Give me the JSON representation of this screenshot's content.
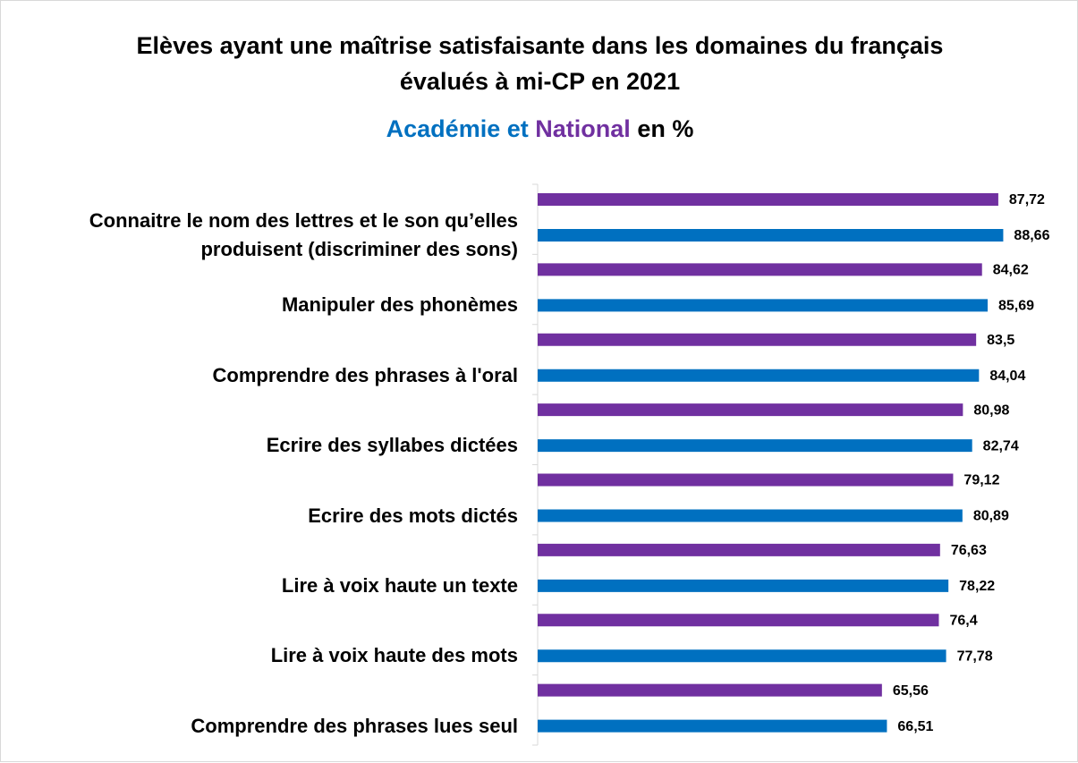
{
  "chart_data": {
    "type": "barh",
    "title": "Elèves ayant une maîtrise satisfaisante dans les domaines du français évalués à mi-CP en 2021",
    "legend_joiner": "et",
    "unit_label": "en %",
    "categories": [
      "Connaitre le nom des lettres et le son qu’elles produisent (discriminer des sons)",
      "Manipuler des phonèmes",
      "Comprendre des phrases à l'oral",
      "Ecrire des syllabes dictées",
      "Ecrire des mots dictés",
      "Lire à voix haute un texte",
      "Lire à voix haute des mots",
      "Comprendre des phrases lues seul"
    ],
    "series": [
      {
        "name": "Académie",
        "color": "#0070c0",
        "values": [
          88.66,
          85.69,
          84.04,
          82.74,
          80.89,
          78.22,
          77.78,
          66.51
        ],
        "value_labels": [
          "88,66",
          "85,69",
          "84,04",
          "82,74",
          "80,89",
          "78,22",
          "77,78",
          "66,51"
        ]
      },
      {
        "name": "National",
        "color": "#7030a0",
        "values": [
          87.72,
          84.62,
          83.5,
          80.98,
          79.12,
          76.63,
          76.4,
          65.56
        ],
        "value_labels": [
          "87,72",
          "84,62",
          "83,5",
          "80,98",
          "79,12",
          "76,63",
          "76,4",
          "65,56"
        ]
      }
    ],
    "xlim": [
      0,
      100
    ]
  }
}
